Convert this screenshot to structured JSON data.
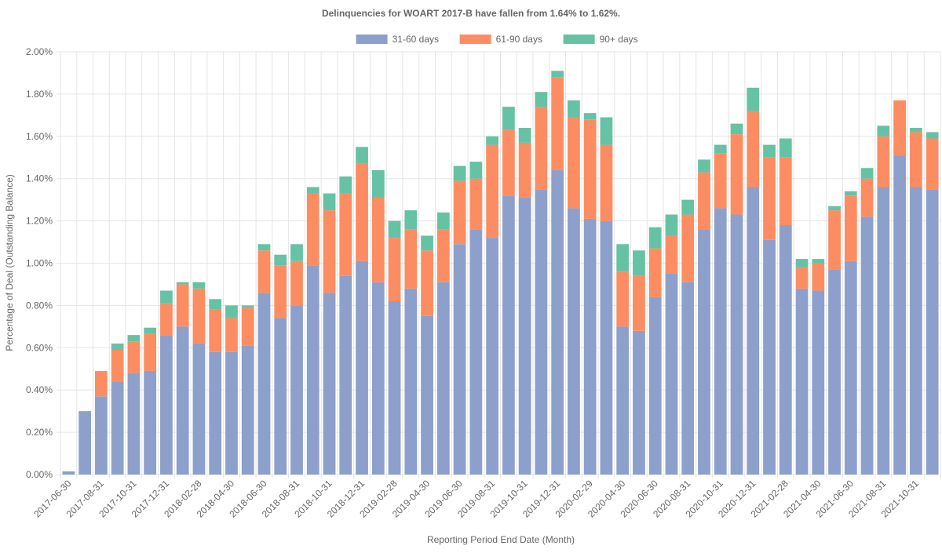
{
  "chart_data": {
    "type": "stacked_bar",
    "title": "Delinquencies for WOART 2017-B have fallen from 1.64% to 1.62%.",
    "x_label": "Reporting Period End Date (Month)",
    "y_label": "Percentage of Deal (Outstanding Balance)",
    "categories": [
      "2017-06-30",
      null,
      "2017-08-31",
      null,
      "2017-10-31",
      null,
      "2017-12-31",
      null,
      "2018-02-28",
      null,
      "2018-04-30",
      null,
      "2018-06-30",
      null,
      "2018-08-31",
      null,
      "2018-10-31",
      null,
      "2018-12-31",
      null,
      "2019-02-28",
      null,
      "2019-04-30",
      null,
      "2019-06-30",
      null,
      "2019-08-31",
      null,
      "2019-10-31",
      null,
      "2019-12-31",
      null,
      "2020-02-29",
      null,
      "2020-04-30",
      null,
      "2020-06-30",
      null,
      "2020-08-31",
      null,
      "2020-10-31",
      null,
      "2020-12-31",
      null,
      "2021-02-28",
      null,
      "2021-04-30",
      null,
      "2021-06-30",
      null,
      "2021-08-31",
      null,
      "2021-10-31",
      null
    ],
    "series": [
      {
        "name": "31-60 days",
        "color": "#8da0cb",
        "values": [
          0.015,
          0.3,
          0.37,
          0.44,
          0.48,
          0.49,
          0.66,
          0.7,
          0.62,
          0.58,
          0.58,
          0.61,
          0.86,
          0.74,
          0.8,
          0.99,
          0.86,
          0.94,
          1.01,
          0.91,
          0.82,
          0.88,
          0.75,
          0.91,
          1.09,
          1.16,
          1.12,
          1.32,
          1.31,
          1.35,
          1.44,
          1.26,
          1.21,
          1.2,
          0.7,
          0.68,
          0.84,
          0.95,
          0.91,
          1.16,
          1.26,
          1.23,
          1.36,
          1.11,
          1.18,
          0.88,
          0.87,
          0.97,
          1.01,
          1.22,
          1.36,
          1.51,
          1.36,
          1.35
        ]
      },
      {
        "name": "61-90 days",
        "color": "#fc8d62",
        "values": [
          0,
          0,
          0.12,
          0.15,
          0.15,
          0.175,
          0.15,
          0.2,
          0.26,
          0.2,
          0.16,
          0.18,
          0.2,
          0.25,
          0.21,
          0.34,
          0.39,
          0.39,
          0.46,
          0.4,
          0.3,
          0.28,
          0.31,
          0.25,
          0.3,
          0.24,
          0.44,
          0.31,
          0.26,
          0.39,
          0.44,
          0.43,
          0.47,
          0.36,
          0.26,
          0.26,
          0.23,
          0.18,
          0.32,
          0.27,
          0.26,
          0.38,
          0.36,
          0.39,
          0.32,
          0.1,
          0.13,
          0.28,
          0.31,
          0.18,
          0.24,
          0.26,
          0.26,
          0.24
        ]
      },
      {
        "name": "90+ days",
        "color": "#66c2a5",
        "values": [
          0,
          0,
          0,
          0.03,
          0.03,
          0.03,
          0.06,
          0.01,
          0.03,
          0.05,
          0.06,
          0.01,
          0.03,
          0.05,
          0.08,
          0.03,
          0.08,
          0.08,
          0.08,
          0.13,
          0.08,
          0.09,
          0.07,
          0.08,
          0.07,
          0.08,
          0.04,
          0.11,
          0.07,
          0.07,
          0.03,
          0.08,
          0.03,
          0.13,
          0.13,
          0.12,
          0.1,
          0.1,
          0.07,
          0.06,
          0.04,
          0.05,
          0.11,
          0.06,
          0.09,
          0.04,
          0.02,
          0.02,
          0.02,
          0.05,
          0.05,
          0,
          0.02,
          0.03
        ]
      }
    ],
    "ylim": [
      0,
      2
    ],
    "yticks": [
      {
        "value": 0,
        "label": "0.00%"
      },
      {
        "value": 0.2,
        "label": "0.20%"
      },
      {
        "value": 0.4,
        "label": "0.40%"
      },
      {
        "value": 0.6,
        "label": "0.60%"
      },
      {
        "value": 0.8,
        "label": "0.80%"
      },
      {
        "value": 1.0,
        "label": "1.00%"
      },
      {
        "value": 1.2,
        "label": "1.20%"
      },
      {
        "value": 1.4,
        "label": "1.40%"
      },
      {
        "value": 1.6,
        "label": "1.60%"
      },
      {
        "value": 1.8,
        "label": "1.80%"
      },
      {
        "value": 2.0,
        "label": "2.00%"
      }
    ],
    "grid": true,
    "legend": "top"
  }
}
